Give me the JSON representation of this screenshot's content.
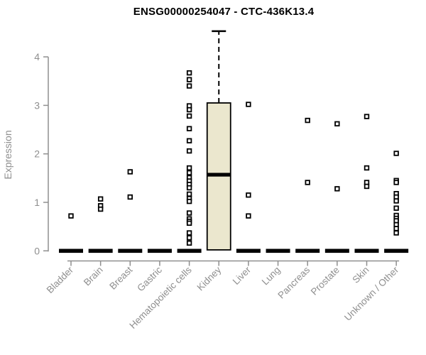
{
  "chart_data": {
    "type": "boxplot",
    "title": "ENSG00000254047 - CTC-436K13.4",
    "ylabel": "Expression",
    "xlabel": "",
    "ylim": [
      0,
      4.6
    ],
    "yticks": [
      0,
      1,
      2,
      3,
      4
    ],
    "grid": false,
    "legend": "none",
    "colors": {
      "box_fill": "#ebe7ce",
      "box_border": "#000000",
      "axis": "#8f8f8f",
      "tick_label": "#8f8f8f",
      "title": "#000000",
      "background": "#ffffff"
    },
    "categories": [
      {
        "label": "Bladder",
        "zero_bar": true,
        "points": [
          0.72
        ]
      },
      {
        "label": "Brain",
        "zero_bar": true,
        "points": [
          1.07,
          0.93,
          0.86
        ]
      },
      {
        "label": "Breast",
        "zero_bar": true,
        "points": [
          1.63,
          1.11
        ]
      },
      {
        "label": "Gastric",
        "zero_bar": true,
        "points": []
      },
      {
        "label": "Hematopoietic cells",
        "zero_bar": true,
        "points": [
          3.67,
          3.53,
          3.4,
          2.99,
          2.91,
          2.78,
          2.52,
          2.27,
          2.06,
          1.71,
          1.61,
          1.51,
          1.44,
          1.37,
          1.3,
          1.17,
          1.08,
          1.02,
          0.78,
          0.66,
          0.61,
          0.57,
          0.37,
          0.27,
          0.16
        ]
      },
      {
        "label": "Kidney",
        "zero_bar": false,
        "box": {
          "q1": 0.02,
          "median": 1.57,
          "q3": 3.05,
          "whisker_high": 4.53
        },
        "points": []
      },
      {
        "label": "Liver",
        "zero_bar": true,
        "points": [
          3.02,
          1.15,
          0.72
        ]
      },
      {
        "label": "Lung",
        "zero_bar": true,
        "points": []
      },
      {
        "label": "Pancreas",
        "zero_bar": true,
        "points": [
          2.69,
          1.41
        ]
      },
      {
        "label": "Prostate",
        "zero_bar": true,
        "points": [
          2.62,
          1.28
        ]
      },
      {
        "label": "Skin",
        "zero_bar": true,
        "points": [
          2.77,
          1.71,
          1.41,
          1.33
        ]
      },
      {
        "label": "Unknown / Other",
        "zero_bar": true,
        "points": [
          2.01,
          1.45,
          1.41,
          1.18,
          1.11,
          1.03,
          0.88,
          0.73,
          0.67,
          0.62,
          0.54,
          0.46,
          0.37
        ]
      }
    ]
  }
}
